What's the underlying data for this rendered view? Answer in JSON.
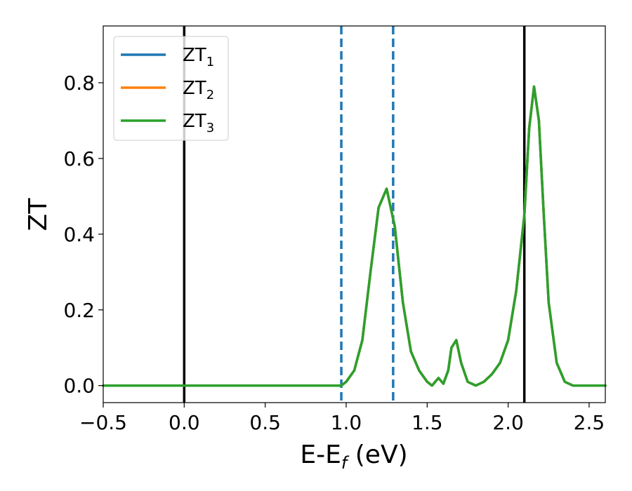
{
  "chart_data": {
    "type": "line",
    "xlabel": "E-E",
    "xlabel_sub": "f",
    "xlabel_unit": " (eV)",
    "ylabel": "ZT",
    "xlim": [
      -0.5,
      2.6
    ],
    "ylim": [
      -0.045,
      0.95
    ],
    "xticks": [
      -0.5,
      0.0,
      0.5,
      1.0,
      1.5,
      2.0,
      2.5
    ],
    "xtick_labels": [
      "−0.5",
      "0.0",
      "0.5",
      "1.0",
      "1.5",
      "2.0",
      "2.5"
    ],
    "yticks": [
      0.0,
      0.2,
      0.4,
      0.6,
      0.8
    ],
    "ytick_labels": [
      "0.0",
      "0.2",
      "0.4",
      "0.6",
      "0.8"
    ],
    "grid": false,
    "legend": {
      "position": "top-left"
    },
    "reference_lines": [
      {
        "x": 0.0,
        "style": "solid",
        "color": "#000000"
      },
      {
        "x": 2.1,
        "style": "solid",
        "color": "#000000"
      },
      {
        "x": 0.97,
        "style": "dashed",
        "color": "#1f77b4"
      },
      {
        "x": 1.29,
        "style": "dashed",
        "color": "#1f77b4"
      }
    ],
    "series": [
      {
        "name": "ZT",
        "name_sub": "1",
        "color": "#1f77b4",
        "x": [
          -0.5,
          0.9,
          0.97,
          1.0,
          1.05,
          1.1,
          1.15,
          1.2,
          1.25,
          1.3,
          1.35,
          1.4,
          1.45,
          1.5,
          1.53,
          1.57,
          1.6,
          1.63,
          1.65,
          1.68,
          1.71,
          1.75,
          1.8,
          1.85,
          1.9,
          1.95,
          2.0,
          2.05,
          2.1,
          2.13,
          2.16,
          2.19,
          2.22,
          2.25,
          2.3,
          2.35,
          2.4,
          2.6
        ],
        "y": [
          0.0,
          0.0,
          0.0,
          0.01,
          0.04,
          0.12,
          0.3,
          0.47,
          0.52,
          0.42,
          0.22,
          0.09,
          0.04,
          0.01,
          0.0,
          0.02,
          0.005,
          0.04,
          0.1,
          0.12,
          0.06,
          0.01,
          0.0,
          0.01,
          0.03,
          0.06,
          0.12,
          0.25,
          0.45,
          0.68,
          0.79,
          0.7,
          0.45,
          0.22,
          0.06,
          0.01,
          0.0,
          0.0
        ]
      },
      {
        "name": "ZT",
        "name_sub": "2",
        "color": "#ff7f0e",
        "x": [
          -0.5,
          0.9,
          0.97,
          1.0,
          1.05,
          1.1,
          1.15,
          1.2,
          1.25,
          1.3,
          1.35,
          1.4,
          1.45,
          1.5,
          1.53,
          1.57,
          1.6,
          1.63,
          1.65,
          1.68,
          1.71,
          1.75,
          1.8,
          1.85,
          1.9,
          1.95,
          2.0,
          2.05,
          2.1,
          2.13,
          2.16,
          2.19,
          2.22,
          2.25,
          2.3,
          2.35,
          2.4,
          2.6
        ],
        "y": [
          0.0,
          0.0,
          0.0,
          0.01,
          0.04,
          0.12,
          0.3,
          0.47,
          0.52,
          0.42,
          0.22,
          0.09,
          0.04,
          0.01,
          0.0,
          0.02,
          0.005,
          0.04,
          0.1,
          0.12,
          0.06,
          0.01,
          0.0,
          0.01,
          0.03,
          0.06,
          0.12,
          0.25,
          0.45,
          0.68,
          0.79,
          0.7,
          0.45,
          0.22,
          0.06,
          0.01,
          0.0,
          0.0
        ]
      },
      {
        "name": "ZT",
        "name_sub": "3",
        "color": "#2ca02c",
        "x": [
          -0.5,
          0.9,
          0.97,
          1.0,
          1.05,
          1.1,
          1.15,
          1.2,
          1.25,
          1.3,
          1.35,
          1.4,
          1.45,
          1.5,
          1.53,
          1.57,
          1.6,
          1.63,
          1.65,
          1.68,
          1.71,
          1.75,
          1.8,
          1.85,
          1.9,
          1.95,
          2.0,
          2.05,
          2.1,
          2.13,
          2.16,
          2.19,
          2.22,
          2.25,
          2.3,
          2.35,
          2.4,
          2.6
        ],
        "y": [
          0.0,
          0.0,
          0.0,
          0.01,
          0.04,
          0.12,
          0.3,
          0.47,
          0.52,
          0.42,
          0.22,
          0.09,
          0.04,
          0.01,
          0.0,
          0.02,
          0.005,
          0.04,
          0.1,
          0.12,
          0.06,
          0.01,
          0.0,
          0.01,
          0.03,
          0.06,
          0.12,
          0.25,
          0.45,
          0.68,
          0.79,
          0.7,
          0.45,
          0.22,
          0.06,
          0.01,
          0.0,
          0.0
        ]
      }
    ]
  }
}
